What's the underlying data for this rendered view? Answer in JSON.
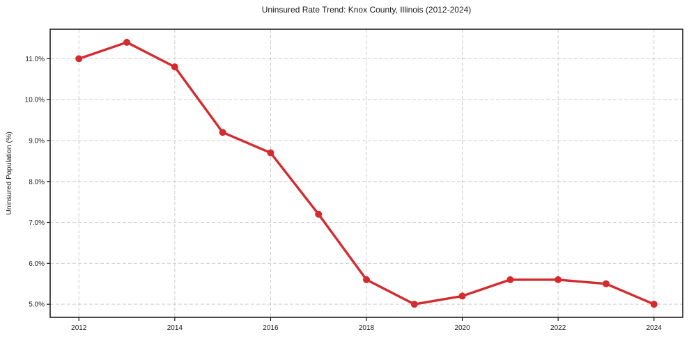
{
  "chart_data": {
    "type": "line",
    "title": "Uninsured Rate Trend: Knox County, Illinois (2012-2024)",
    "xlabel": "",
    "ylabel": "Uninsured Population (%)",
    "x": [
      2012,
      2013,
      2014,
      2015,
      2016,
      2017,
      2018,
      2019,
      2020,
      2021,
      2022,
      2023,
      2024
    ],
    "series": [
      {
        "name": "Uninsured Population (%)",
        "values": [
          11.0,
          11.4,
          10.8,
          9.2,
          8.7,
          7.2,
          5.6,
          5.0,
          5.2,
          5.6,
          5.6,
          5.5,
          5.0
        ]
      }
    ],
    "line_color": "#d32b2e",
    "marker": "circle",
    "grid": "dashed-both",
    "legend_position": "none",
    "xlim": [
      2011.4,
      2024.6
    ],
    "ylim": [
      4.68,
      11.72
    ],
    "xticks": {
      "values": [
        2012,
        2014,
        2016,
        2018,
        2020,
        2022,
        2024
      ],
      "labels": [
        "2012",
        "2014",
        "2016",
        "2018",
        "2020",
        "2022",
        "2024"
      ]
    },
    "yticks": {
      "values": [
        5.0,
        6.0,
        7.0,
        8.0,
        9.0,
        10.0,
        11.0
      ],
      "labels": [
        "5.0%",
        "6.0%",
        "7.0%",
        "8.0%",
        "9.0%",
        "10.0%",
        "11.0%"
      ]
    }
  }
}
